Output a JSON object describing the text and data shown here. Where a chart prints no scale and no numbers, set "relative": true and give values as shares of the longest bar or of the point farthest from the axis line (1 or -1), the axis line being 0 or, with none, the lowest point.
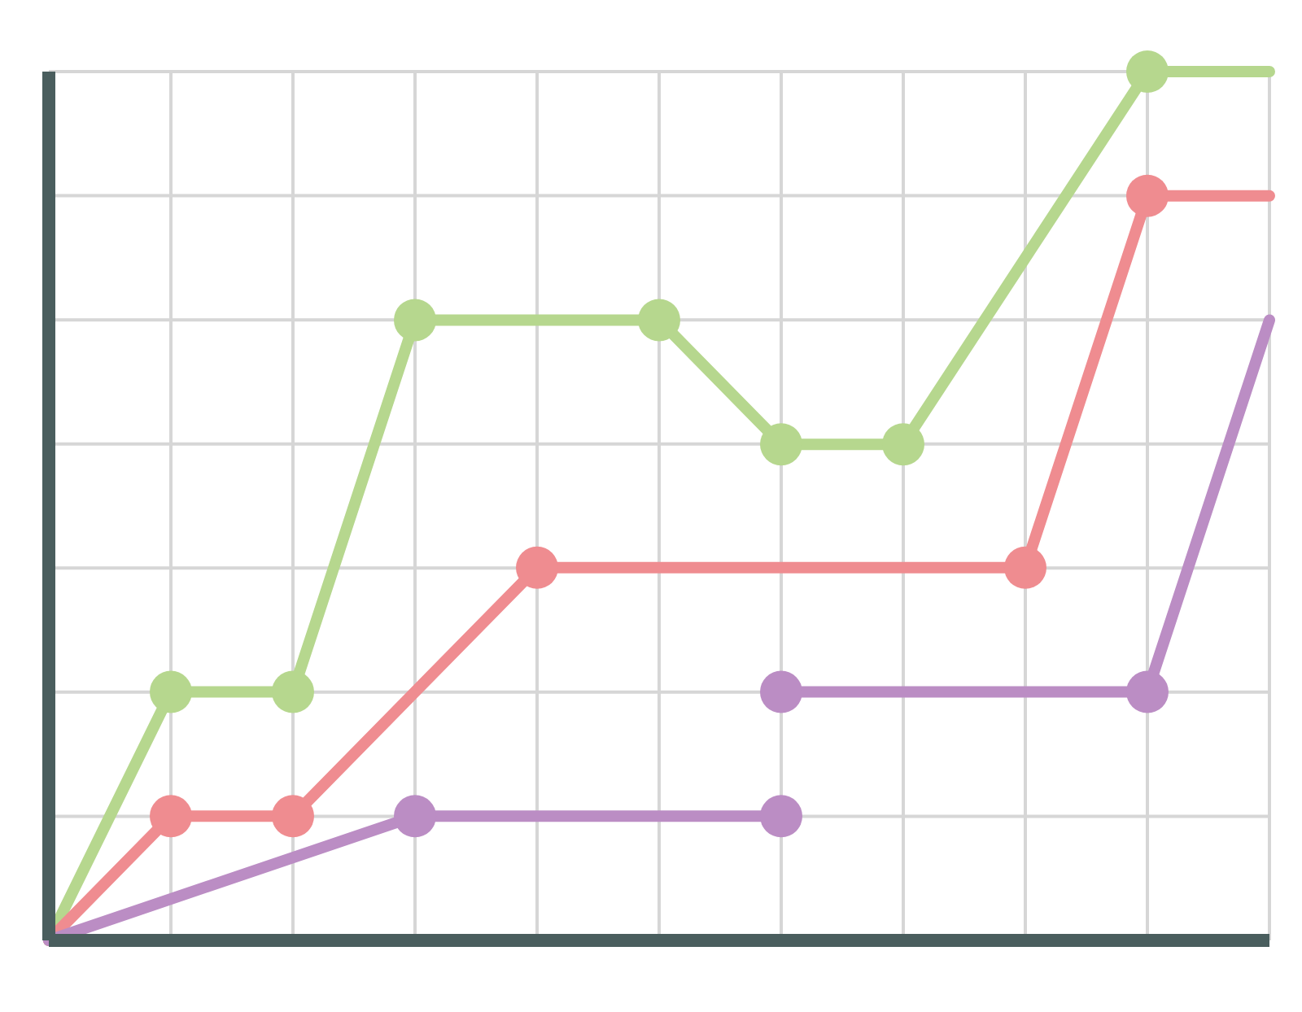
{
  "chart_data": {
    "type": "line",
    "relative": true,
    "categories": [
      null,
      null,
      null,
      null,
      null,
      null,
      null,
      null,
      null,
      null,
      null
    ],
    "grid": true,
    "marker": "circle",
    "line_style": "solid",
    "series": [
      {
        "color": "#b6d78e",
        "values": [
          0,
          0.286,
          0.286,
          0.714,
          null,
          0.714,
          0.571,
          0.571,
          null,
          1,
          1
        ]
      },
      {
        "color": "#ef8c90",
        "values": [
          0,
          0.143,
          0.143,
          null,
          0.429,
          null,
          null,
          null,
          0.429,
          0.857,
          0.857
        ]
      },
      {
        "color": "#bb8dc4",
        "values": [
          0,
          null,
          null,
          0.143,
          null,
          null,
          0.143,
          null,
          null,
          null,
          null
        ]
      },
      {
        "color": "#bb8dc4",
        "values": [
          null,
          null,
          null,
          null,
          null,
          null,
          0.286,
          null,
          null,
          0.286,
          0.714
        ]
      }
    ]
  }
}
